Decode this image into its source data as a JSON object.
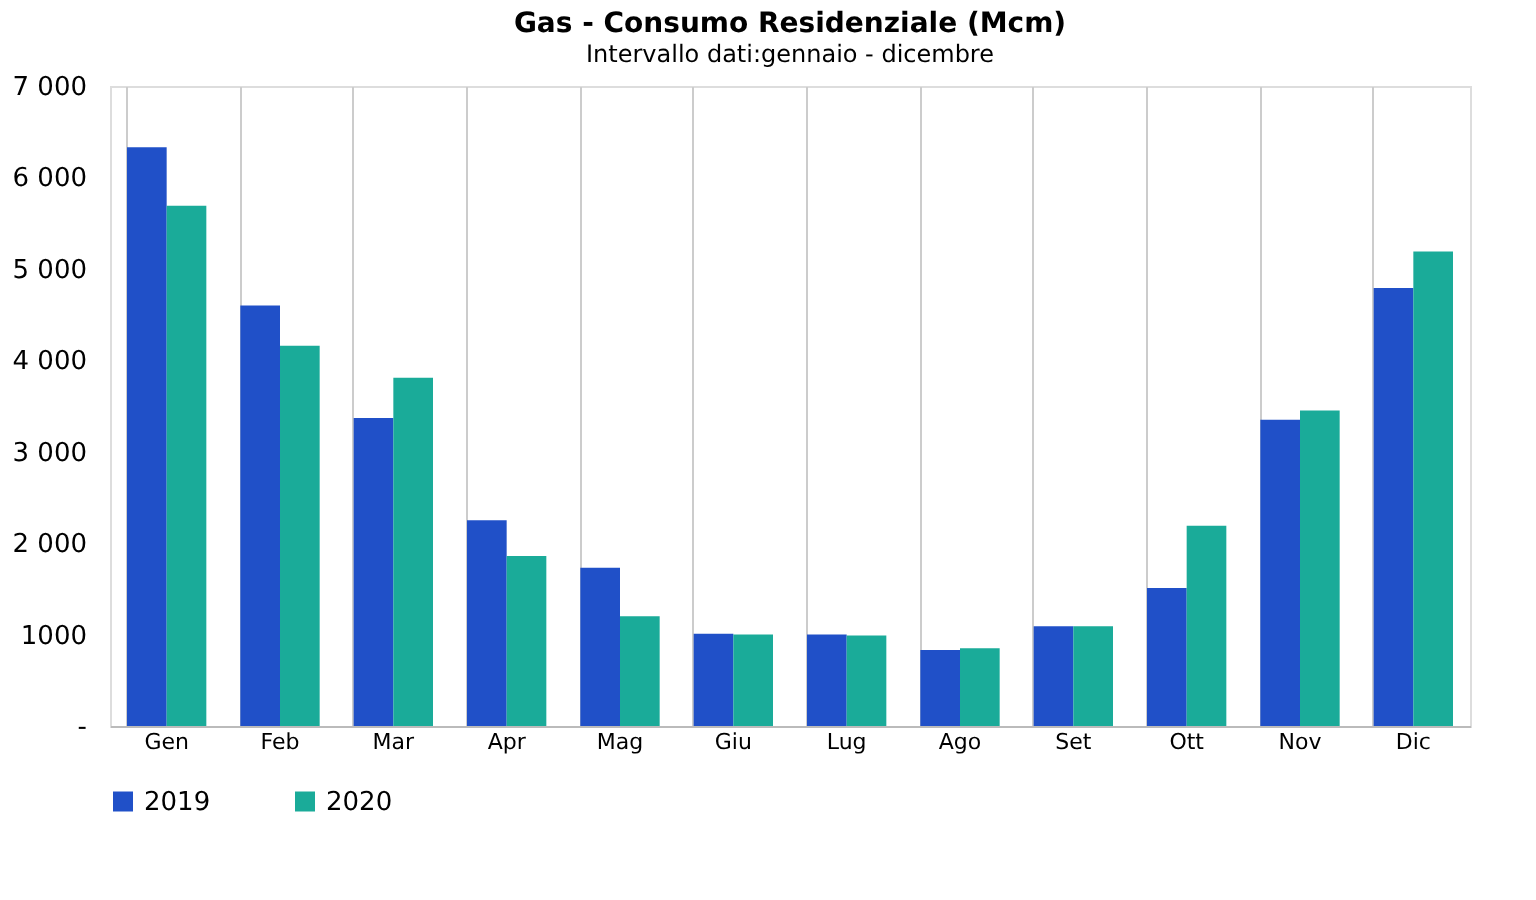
{
  "chart_data": {
    "type": "bar",
    "title": "Gas - Consumo Residenziale (Mcm)",
    "subtitle": "Intervallo dati:gennaio - dicembre",
    "categories": [
      "Gen",
      "Feb",
      "Mar",
      "Apr",
      "Mag",
      "Giu",
      "Lug",
      "Ago",
      "Set",
      "Ott",
      "Nov",
      "Dic"
    ],
    "series": [
      {
        "name": "2019",
        "color": "#2050c8",
        "values": [
          6330,
          4600,
          3370,
          2250,
          1730,
          1010,
          1000,
          830,
          1090,
          1510,
          3350,
          4790
        ]
      },
      {
        "name": "2020",
        "color": "#1aab99",
        "values": [
          5690,
          4160,
          3810,
          1860,
          1200,
          1000,
          990,
          850,
          1090,
          2190,
          3450,
          5190
        ]
      }
    ],
    "ylim": [
      0,
      7000
    ],
    "yticks": [
      {
        "value": 0,
        "label": "-"
      },
      1000,
      {
        "value": 2000,
        "label": "2 000"
      },
      {
        "value": 3000,
        "label": "3 000"
      },
      {
        "value": 4000,
        "label": "4 000"
      },
      {
        "value": 5000,
        "label": "5 000"
      },
      {
        "value": 6000,
        "label": "6 000"
      },
      {
        "value": 7000,
        "label": "7 000"
      }
    ],
    "grid": "x",
    "legend": "bottom"
  }
}
